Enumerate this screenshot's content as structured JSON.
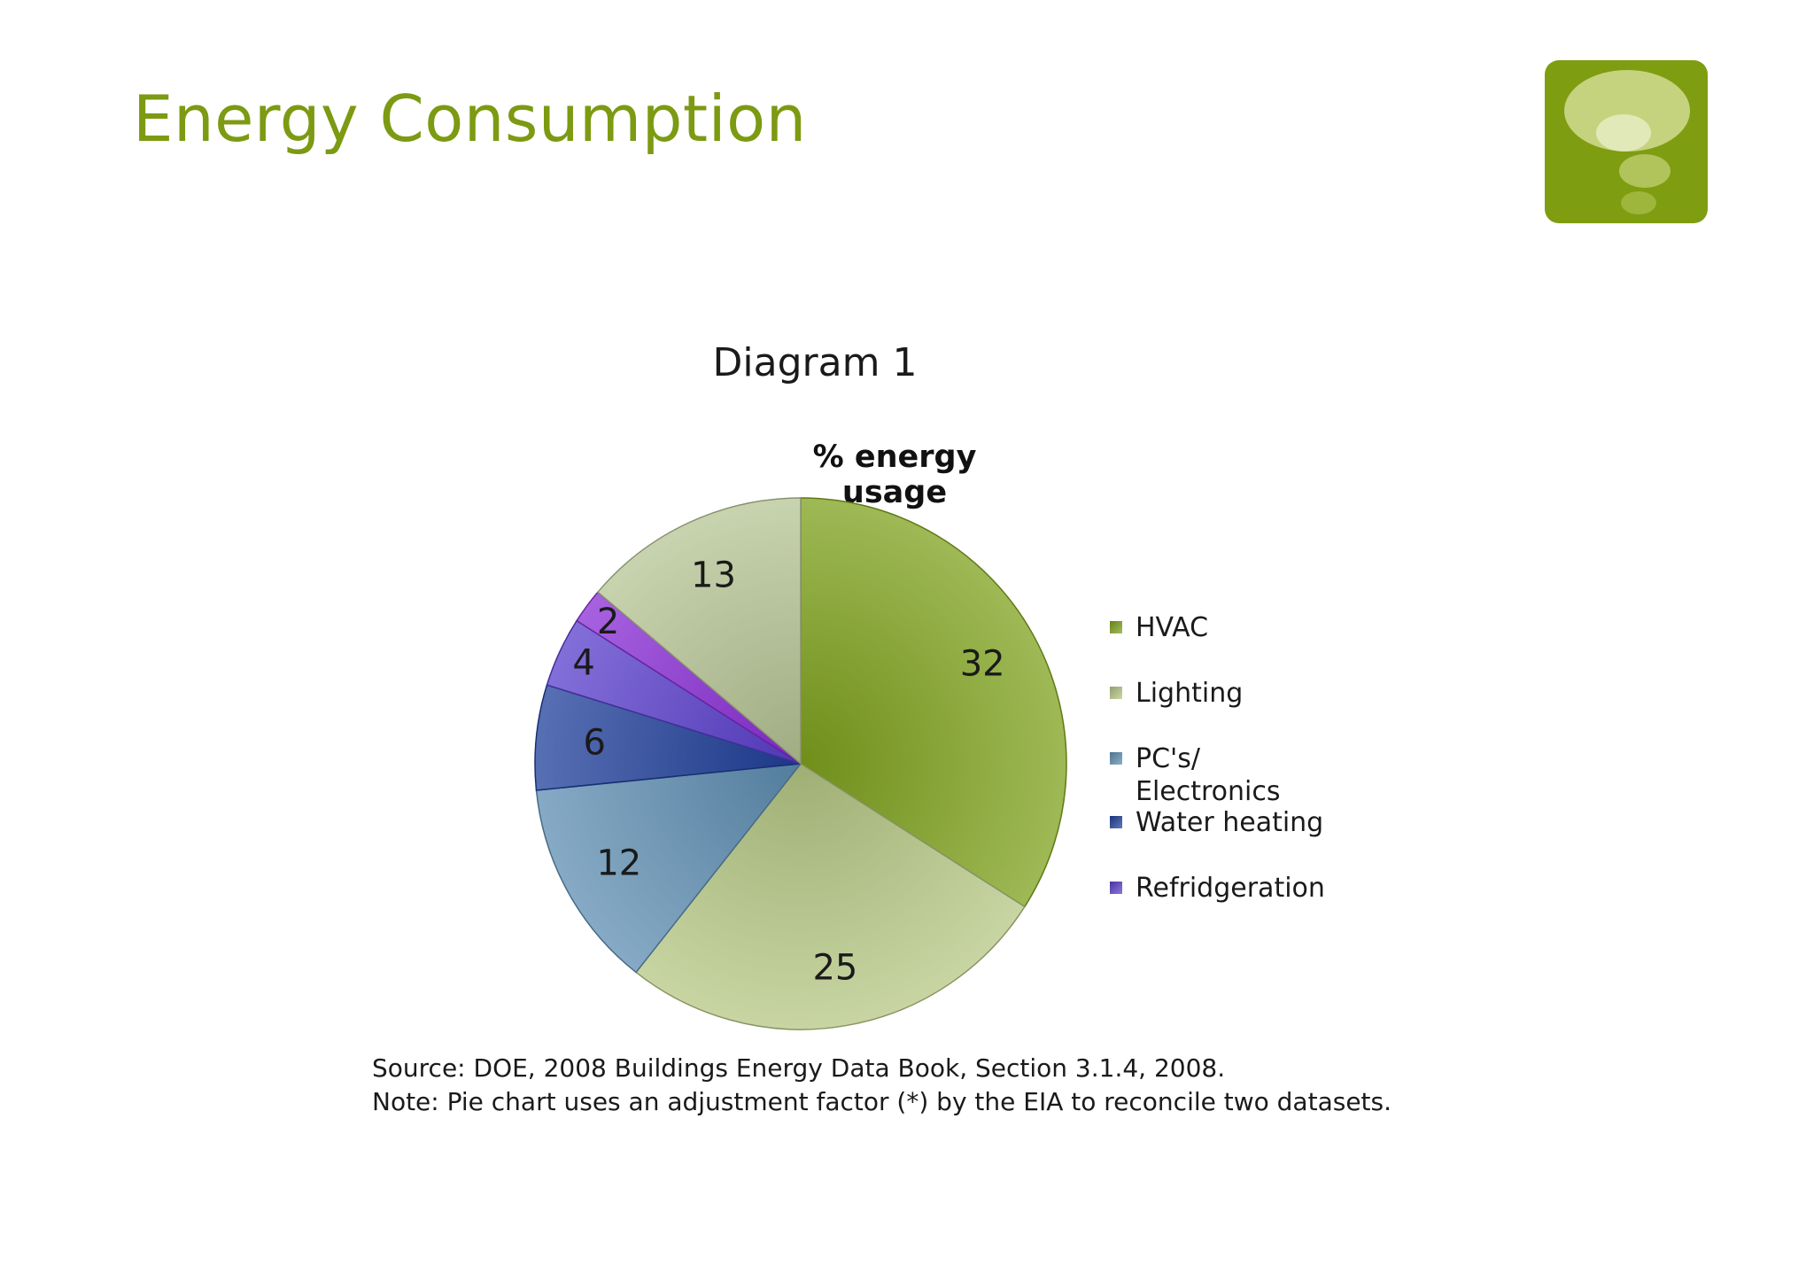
{
  "slide": {
    "title": "Energy Consumption",
    "diagram_label": "Diagram 1",
    "source_line": "Source: DOE, 2008 Buildings Energy Data Book, Section 3.1.4, 2008.",
    "note_line": "Note: Pie chart uses an adjustment factor (*) by the EIA to reconcile two datasets."
  },
  "logo": {
    "icon": "thought-bubbles-icon",
    "color": "#7f9d10"
  },
  "chart_data": {
    "type": "pie",
    "title": "% energy usage",
    "legend_position": "right",
    "slices": [
      {
        "label": "HVAC",
        "value": 32,
        "color": "#7ea11c"
      },
      {
        "label": "Lighting",
        "value": 25,
        "color": "#b5c784"
      },
      {
        "label": "PC's/ Electronics",
        "value": 12,
        "color": "#5e8eb2"
      },
      {
        "label": "Water heating",
        "value": 6,
        "color": "#1f3f99"
      },
      {
        "label": "Refridgeration",
        "value": 4,
        "color": "#5a3fcc"
      },
      {
        "label": "",
        "value": 2,
        "color": "#8a2ed6"
      },
      {
        "label": "",
        "value": 13,
        "color": "#b6c494"
      }
    ]
  }
}
